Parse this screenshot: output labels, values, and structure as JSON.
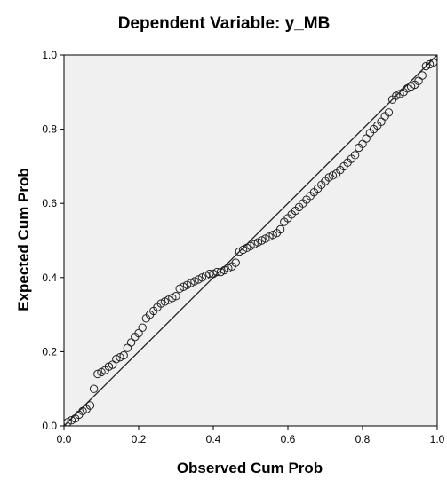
{
  "chart_data": {
    "type": "scatter",
    "title": "Dependent Variable: y_MB",
    "xlabel": "Observed Cum Prob",
    "ylabel": "Expected Cum Prob",
    "xlim": [
      0,
      1
    ],
    "ylim": [
      0,
      1
    ],
    "xticks": [
      "0.0",
      "0.2",
      "0.4",
      "0.6",
      "0.8",
      "1.0"
    ],
    "yticks": [
      "0.0",
      "0.2",
      "0.4",
      "0.6",
      "0.8",
      "1.0"
    ],
    "grid": false,
    "legend": "none",
    "reference_line": {
      "x": [
        0,
        1
      ],
      "y": [
        0,
        1
      ]
    },
    "series": [
      {
        "marker": "open-circle",
        "points": [
          [
            0.01,
            0.01
          ],
          [
            0.02,
            0.015
          ],
          [
            0.03,
            0.02
          ],
          [
            0.04,
            0.03
          ],
          [
            0.05,
            0.04
          ],
          [
            0.06,
            0.045
          ],
          [
            0.07,
            0.055
          ],
          [
            0.08,
            0.1
          ],
          [
            0.09,
            0.14
          ],
          [
            0.1,
            0.145
          ],
          [
            0.11,
            0.15
          ],
          [
            0.12,
            0.16
          ],
          [
            0.13,
            0.165
          ],
          [
            0.14,
            0.18
          ],
          [
            0.15,
            0.185
          ],
          [
            0.16,
            0.19
          ],
          [
            0.17,
            0.21
          ],
          [
            0.18,
            0.225
          ],
          [
            0.19,
            0.24
          ],
          [
            0.2,
            0.25
          ],
          [
            0.21,
            0.265
          ],
          [
            0.22,
            0.29
          ],
          [
            0.23,
            0.3
          ],
          [
            0.24,
            0.31
          ],
          [
            0.25,
            0.32
          ],
          [
            0.26,
            0.33
          ],
          [
            0.27,
            0.335
          ],
          [
            0.28,
            0.34
          ],
          [
            0.29,
            0.345
          ],
          [
            0.3,
            0.35
          ],
          [
            0.31,
            0.37
          ],
          [
            0.32,
            0.375
          ],
          [
            0.33,
            0.38
          ],
          [
            0.34,
            0.385
          ],
          [
            0.35,
            0.39
          ],
          [
            0.36,
            0.395
          ],
          [
            0.37,
            0.4
          ],
          [
            0.38,
            0.405
          ],
          [
            0.39,
            0.41
          ],
          [
            0.4,
            0.41
          ],
          [
            0.41,
            0.415
          ],
          [
            0.42,
            0.415
          ],
          [
            0.43,
            0.42
          ],
          [
            0.44,
            0.425
          ],
          [
            0.45,
            0.43
          ],
          [
            0.46,
            0.44
          ],
          [
            0.47,
            0.47
          ],
          [
            0.48,
            0.475
          ],
          [
            0.49,
            0.48
          ],
          [
            0.5,
            0.485
          ],
          [
            0.51,
            0.49
          ],
          [
            0.52,
            0.495
          ],
          [
            0.53,
            0.5
          ],
          [
            0.54,
            0.505
          ],
          [
            0.55,
            0.51
          ],
          [
            0.56,
            0.515
          ],
          [
            0.57,
            0.52
          ],
          [
            0.58,
            0.53
          ],
          [
            0.59,
            0.55
          ],
          [
            0.6,
            0.56
          ],
          [
            0.61,
            0.57
          ],
          [
            0.62,
            0.58
          ],
          [
            0.63,
            0.59
          ],
          [
            0.64,
            0.6
          ],
          [
            0.65,
            0.61
          ],
          [
            0.66,
            0.62
          ],
          [
            0.67,
            0.63
          ],
          [
            0.68,
            0.64
          ],
          [
            0.69,
            0.65
          ],
          [
            0.7,
            0.66
          ],
          [
            0.71,
            0.67
          ],
          [
            0.72,
            0.675
          ],
          [
            0.73,
            0.68
          ],
          [
            0.74,
            0.69
          ],
          [
            0.75,
            0.7
          ],
          [
            0.76,
            0.71
          ],
          [
            0.77,
            0.72
          ],
          [
            0.78,
            0.73
          ],
          [
            0.79,
            0.75
          ],
          [
            0.8,
            0.76
          ],
          [
            0.81,
            0.775
          ],
          [
            0.82,
            0.79
          ],
          [
            0.83,
            0.8
          ],
          [
            0.84,
            0.81
          ],
          [
            0.85,
            0.82
          ],
          [
            0.86,
            0.835
          ],
          [
            0.87,
            0.845
          ],
          [
            0.88,
            0.88
          ],
          [
            0.89,
            0.89
          ],
          [
            0.9,
            0.895
          ],
          [
            0.91,
            0.9
          ],
          [
            0.92,
            0.91
          ],
          [
            0.93,
            0.915
          ],
          [
            0.94,
            0.92
          ],
          [
            0.95,
            0.93
          ],
          [
            0.96,
            0.945
          ],
          [
            0.97,
            0.97
          ],
          [
            0.98,
            0.975
          ],
          [
            0.99,
            0.98
          ]
        ]
      }
    ]
  },
  "colors": {
    "plot_background": "#f0f0f0",
    "marker_stroke": "#222222",
    "line": "#222222"
  }
}
